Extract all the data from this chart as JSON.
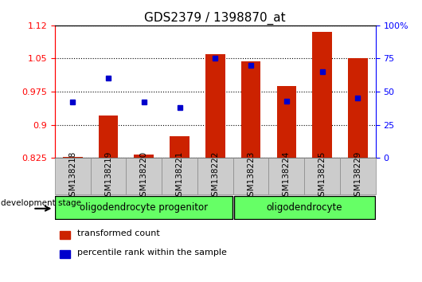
{
  "title": "GDS2379 / 1398870_at",
  "samples": [
    "GSM138218",
    "GSM138219",
    "GSM138220",
    "GSM138221",
    "GSM138222",
    "GSM138223",
    "GSM138224",
    "GSM138225",
    "GSM138229"
  ],
  "transformed_count": [
    0.828,
    0.921,
    0.833,
    0.875,
    1.06,
    1.043,
    0.987,
    1.11,
    1.05
  ],
  "percentile_rank": [
    42,
    60,
    42,
    38,
    75,
    70,
    43,
    65,
    45
  ],
  "y_min": 0.825,
  "y_max": 1.125,
  "y_ticks": [
    0.825,
    0.9,
    0.975,
    1.05,
    1.125
  ],
  "y2_ticks": [
    0,
    25,
    50,
    75,
    100
  ],
  "bar_color": "#cc2200",
  "dot_color": "#0000cc",
  "group1_label": "oligodendrocyte progenitor",
  "group2_label": "oligodendrocyte",
  "group1_count": 5,
  "group2_count": 4,
  "dev_stage_label": "development stage",
  "legend1": "transformed count",
  "legend2": "percentile rank within the sample",
  "tick_bg_color": "#cccccc",
  "group_color": "#66ff66",
  "title_fontsize": 11,
  "tick_fontsize": 8,
  "label_fontsize": 8.5
}
